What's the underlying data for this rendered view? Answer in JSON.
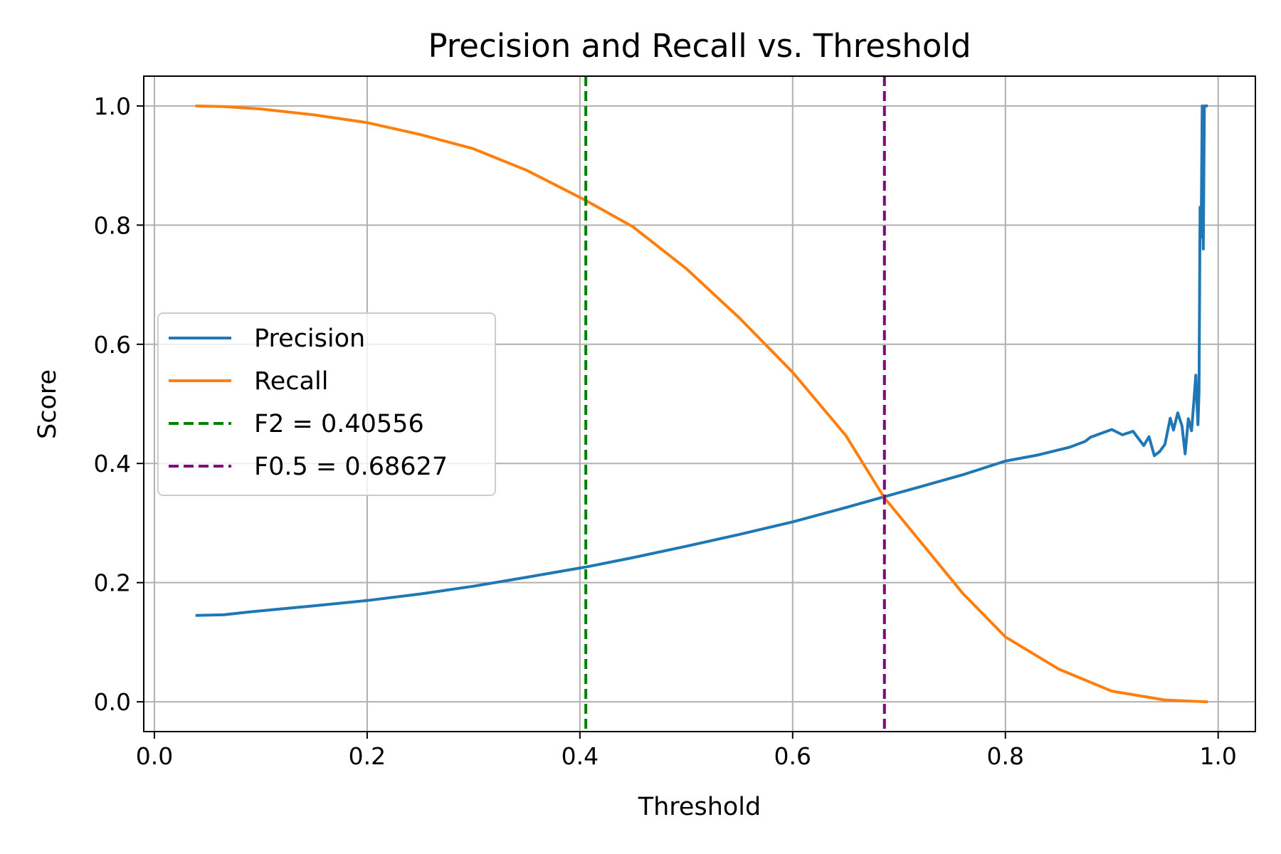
{
  "chart_data": {
    "type": "line",
    "title": "Precision and Recall vs. Threshold",
    "xlabel": "Threshold",
    "ylabel": "Score",
    "xlim": [
      -0.01,
      1.035
    ],
    "ylim": [
      -0.05,
      1.05
    ],
    "grid": true,
    "legend_position": "center-left",
    "x_ticks": [
      0.0,
      0.2,
      0.4,
      0.6,
      0.8,
      1.0
    ],
    "x_tick_labels": [
      "0.0",
      "0.2",
      "0.4",
      "0.6",
      "0.8",
      "1.0"
    ],
    "y_ticks": [
      0.0,
      0.2,
      0.4,
      0.6,
      0.8,
      1.0
    ],
    "y_tick_labels": [
      "0.0",
      "0.2",
      "0.4",
      "0.6",
      "0.8",
      "1.0"
    ],
    "series": [
      {
        "name": "Precision",
        "color": "#1f77b4",
        "points": [
          [
            0.04,
            0.145
          ],
          [
            0.065,
            0.146
          ],
          [
            0.09,
            0.151
          ],
          [
            0.12,
            0.156
          ],
          [
            0.15,
            0.161
          ],
          [
            0.2,
            0.17
          ],
          [
            0.25,
            0.181
          ],
          [
            0.3,
            0.194
          ],
          [
            0.35,
            0.209
          ],
          [
            0.405,
            0.226
          ],
          [
            0.45,
            0.242
          ],
          [
            0.5,
            0.261
          ],
          [
            0.55,
            0.281
          ],
          [
            0.6,
            0.302
          ],
          [
            0.65,
            0.326
          ],
          [
            0.686,
            0.344
          ],
          [
            0.72,
            0.361
          ],
          [
            0.76,
            0.381
          ],
          [
            0.8,
            0.404
          ],
          [
            0.83,
            0.414
          ],
          [
            0.86,
            0.427
          ],
          [
            0.875,
            0.437
          ],
          [
            0.88,
            0.444
          ],
          [
            0.9,
            0.457
          ],
          [
            0.91,
            0.448
          ],
          [
            0.92,
            0.454
          ],
          [
            0.925,
            0.442
          ],
          [
            0.93,
            0.43
          ],
          [
            0.935,
            0.445
          ],
          [
            0.94,
            0.413
          ],
          [
            0.945,
            0.42
          ],
          [
            0.95,
            0.432
          ],
          [
            0.955,
            0.476
          ],
          [
            0.958,
            0.456
          ],
          [
            0.962,
            0.485
          ],
          [
            0.966,
            0.463
          ],
          [
            0.969,
            0.416
          ],
          [
            0.972,
            0.475
          ],
          [
            0.975,
            0.455
          ],
          [
            0.977,
            0.5
          ],
          [
            0.979,
            0.548
          ],
          [
            0.981,
            0.465
          ],
          [
            0.982,
            0.52
          ],
          [
            0.983,
            0.83
          ],
          [
            0.984,
            0.78
          ],
          [
            0.985,
            1.0
          ],
          [
            0.986,
            0.76
          ],
          [
            0.987,
            1.0
          ],
          [
            0.989,
            1.0
          ]
        ]
      },
      {
        "name": "Recall",
        "color": "#ff7f0e",
        "points": [
          [
            0.04,
            1.0
          ],
          [
            0.065,
            0.999
          ],
          [
            0.1,
            0.995
          ],
          [
            0.15,
            0.985
          ],
          [
            0.2,
            0.972
          ],
          [
            0.25,
            0.952
          ],
          [
            0.3,
            0.928
          ],
          [
            0.35,
            0.892
          ],
          [
            0.405,
            0.842
          ],
          [
            0.45,
            0.797
          ],
          [
            0.5,
            0.727
          ],
          [
            0.55,
            0.644
          ],
          [
            0.6,
            0.553
          ],
          [
            0.65,
            0.447
          ],
          [
            0.686,
            0.343
          ],
          [
            0.72,
            0.269
          ],
          [
            0.76,
            0.182
          ],
          [
            0.8,
            0.109
          ],
          [
            0.85,
            0.055
          ],
          [
            0.9,
            0.018
          ],
          [
            0.95,
            0.003
          ],
          [
            0.989,
            0.0
          ]
        ]
      }
    ],
    "vertical_lines": [
      {
        "name": "F2 = 0.40556",
        "x": 0.40556,
        "color": "#008000"
      },
      {
        "name": "F0.5 = 0.68627",
        "x": 0.68627,
        "color": "#800080"
      }
    ]
  }
}
